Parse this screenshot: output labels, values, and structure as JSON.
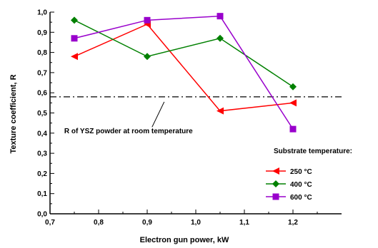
{
  "chart_data": {
    "type": "line",
    "title": "",
    "xlabel": "Electron gun power, kW",
    "ylabel": "Texture coefficient, R",
    "xlim": [
      0.7,
      1.3
    ],
    "ylim": [
      0.0,
      1.0
    ],
    "xticks": [
      0.7,
      0.8,
      0.9,
      1.0,
      1.1,
      1.2
    ],
    "xtick_labels": [
      "0,7",
      "0,8",
      "0,9",
      "1,0",
      "1,1",
      "1,2"
    ],
    "yticks": [
      0.0,
      0.1,
      0.2,
      0.3,
      0.4,
      0.5,
      0.6,
      0.7,
      0.8,
      0.9,
      1.0
    ],
    "ytick_labels": [
      "0,0",
      "0,1",
      "0,2",
      "0,3",
      "0,4",
      "0,5",
      "0,6",
      "0,7",
      "0,8",
      "0,9",
      "1,0"
    ],
    "grid": false,
    "legend": {
      "title": "Substrate temperature:",
      "position": "right"
    },
    "series": [
      {
        "name": "250 °C",
        "color": "#ff0000",
        "marker": "triangle-left",
        "x": [
          0.75,
          0.9,
          1.05,
          1.2
        ],
        "y": [
          0.78,
          0.94,
          0.51,
          0.55
        ]
      },
      {
        "name": "400 °C",
        "color": "#008000",
        "marker": "diamond",
        "x": [
          0.75,
          0.9,
          1.05,
          1.2
        ],
        "y": [
          0.96,
          0.78,
          0.87,
          0.63
        ]
      },
      {
        "name": "600 °C",
        "color": "#9900cc",
        "marker": "square",
        "x": [
          0.75,
          0.9,
          1.05,
          1.2
        ],
        "y": [
          0.87,
          0.96,
          0.98,
          0.42
        ]
      }
    ],
    "reference_line": {
      "y": 0.58,
      "style": "dash-dot",
      "label": "R of YSZ powder at room temperature"
    }
  }
}
